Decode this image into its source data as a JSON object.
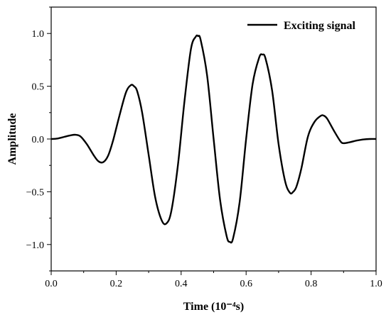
{
  "chart_data": {
    "type": "line",
    "title": "",
    "xlabel": "Time (10⁻⁴s)",
    "ylabel": "Amplitude",
    "xlim": [
      0.0,
      1.0
    ],
    "ylim": [
      -1.25,
      1.25
    ],
    "x_ticks": [
      0.0,
      0.2,
      0.4,
      0.6,
      0.8,
      1.0
    ],
    "x_tick_labels": [
      "0.0",
      "0.2",
      "0.4",
      "0.6",
      "0.8",
      "1.0"
    ],
    "y_ticks": [
      -1.0,
      -0.5,
      0.0,
      0.5,
      1.0
    ],
    "y_tick_labels": [
      "−1.0",
      "−0.5",
      "0.0",
      "0.5",
      "1.0"
    ],
    "grid": false,
    "legend_position": "top-right",
    "series": [
      {
        "name": "Exciting signal",
        "color": "#000000",
        "x": [
          0.0,
          0.02,
          0.04,
          0.06,
          0.075,
          0.09,
          0.11,
          0.13,
          0.145,
          0.16,
          0.175,
          0.19,
          0.21,
          0.23,
          0.245,
          0.255,
          0.265,
          0.28,
          0.3,
          0.32,
          0.34,
          0.355,
          0.37,
          0.39,
          0.41,
          0.43,
          0.445,
          0.452,
          0.46,
          0.48,
          0.5,
          0.52,
          0.54,
          0.55,
          0.56,
          0.58,
          0.6,
          0.62,
          0.64,
          0.65,
          0.66,
          0.68,
          0.7,
          0.72,
          0.735,
          0.745,
          0.755,
          0.77,
          0.79,
          0.81,
          0.83,
          0.84,
          0.85,
          0.87,
          0.89,
          0.9,
          0.92,
          0.94,
          0.96,
          0.98,
          1.0
        ],
        "y": [
          0.0,
          0.005,
          0.02,
          0.035,
          0.04,
          0.025,
          -0.05,
          -0.15,
          -0.21,
          -0.22,
          -0.16,
          -0.02,
          0.22,
          0.44,
          0.51,
          0.5,
          0.45,
          0.25,
          -0.15,
          -0.55,
          -0.77,
          -0.8,
          -0.68,
          -0.25,
          0.35,
          0.85,
          0.97,
          0.975,
          0.94,
          0.6,
          0.0,
          -0.58,
          -0.92,
          -0.975,
          -0.94,
          -0.6,
          0.0,
          0.52,
          0.77,
          0.8,
          0.76,
          0.46,
          -0.05,
          -0.4,
          -0.51,
          -0.5,
          -0.45,
          -0.28,
          0.02,
          0.16,
          0.22,
          0.22,
          0.19,
          0.08,
          -0.02,
          -0.04,
          -0.03,
          -0.015,
          -0.005,
          0.0,
          0.0
        ]
      }
    ]
  }
}
